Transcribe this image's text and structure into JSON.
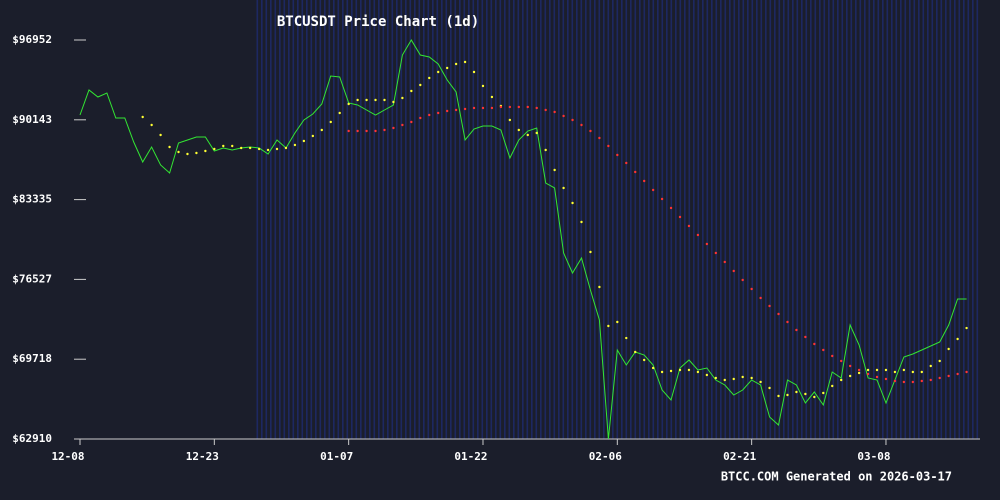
{
  "chart_data": {
    "type": "line",
    "title": "BTCUSDT Price Chart (1d)",
    "footer": "BTCC.COM Generated on 2026-03-17",
    "x": [
      0,
      1,
      2,
      3,
      4,
      5,
      6,
      7,
      8,
      9,
      10,
      11,
      12,
      13,
      14,
      15,
      16,
      17,
      18,
      19,
      20,
      21,
      22,
      23,
      24,
      25,
      26,
      27,
      28,
      29,
      30,
      31,
      32,
      33,
      34,
      35,
      36,
      37,
      38,
      39,
      40,
      41,
      42,
      43,
      44,
      45,
      46,
      47,
      48,
      49,
      50,
      51,
      52,
      53,
      54,
      55,
      56,
      57,
      58,
      59,
      60,
      61,
      62,
      63,
      64,
      65,
      66,
      67,
      68,
      69,
      70,
      71,
      72,
      73,
      74,
      75,
      76,
      77,
      78,
      79,
      80,
      81,
      82,
      83,
      84,
      85,
      86,
      87,
      88,
      89,
      90,
      91,
      92,
      93,
      94,
      95,
      96,
      97,
      98,
      99
    ],
    "xlim": [
      0,
      100.5
    ],
    "xticks": [
      {
        "value": 0,
        "label": "12-08"
      },
      {
        "value": 15,
        "label": "12-23"
      },
      {
        "value": 30,
        "label": "01-07"
      },
      {
        "value": 45,
        "label": "01-22"
      },
      {
        "value": 60,
        "label": "02-06"
      },
      {
        "value": 75,
        "label": "02-21"
      },
      {
        "value": 90,
        "label": "03-08"
      }
    ],
    "ylim": [
      62910,
      96952
    ],
    "yticks": [
      {
        "value": 96952,
        "label": "$96952"
      },
      {
        "value": 90143,
        "label": "$90143"
      },
      {
        "value": 83335,
        "label": "$83335"
      },
      {
        "value": 76527,
        "label": "$76527"
      },
      {
        "value": 69718,
        "label": "$69718"
      },
      {
        "value": 62910,
        "label": "$62910"
      }
    ],
    "series": [
      {
        "style": "line",
        "color": "#33e633",
        "values": [
          90553,
          92686,
          92089,
          92430,
          90297,
          90297,
          88250,
          86543,
          87823,
          86287,
          85605,
          88164,
          88420,
          88676,
          88676,
          87482,
          87738,
          87567,
          87738,
          87823,
          87738,
          87226,
          88420,
          87738,
          89018,
          90126,
          90639,
          91492,
          93880,
          93795,
          91577,
          91406,
          90980,
          90553,
          90980,
          91406,
          95672,
          96952,
          95672,
          95502,
          94905,
          93539,
          92515,
          88420,
          89359,
          89615,
          89615,
          89274,
          86884,
          88420,
          89188,
          89444,
          84751,
          84325,
          78779,
          77073,
          78352,
          75622,
          73063,
          62910,
          70503,
          69224,
          70333,
          70077,
          69224,
          67090,
          66237,
          68967,
          69650,
          68797,
          68967,
          67943,
          67517,
          66664,
          67090,
          67943,
          67517,
          64787,
          64104,
          67943,
          67517,
          65981,
          66920,
          65811,
          68626,
          68114,
          72636,
          70930,
          68114,
          67943,
          65981,
          67943,
          69906,
          70162,
          70503,
          70844,
          71186,
          72636,
          74854,
          74854
        ]
      },
      {
        "style": "dots",
        "color": "#ffff33",
        "values": [
          null,
          null,
          null,
          null,
          null,
          null,
          null,
          90383,
          89700,
          88847,
          87823,
          87396,
          87226,
          87311,
          87482,
          87652,
          87908,
          87908,
          87738,
          87738,
          87652,
          87567,
          87652,
          87738,
          87993,
          88335,
          88761,
          89274,
          89956,
          90724,
          91492,
          91833,
          91833,
          91833,
          91833,
          91662,
          92003,
          92601,
          93113,
          93710,
          94222,
          94563,
          94904,
          95075,
          94222,
          93027,
          92089,
          91321,
          90127,
          89274,
          88847,
          89017,
          87567,
          85861,
          84325,
          83045,
          81424,
          78864,
          75878,
          72550,
          72892,
          71526,
          70333,
          69650,
          68967,
          68626,
          68712,
          68797,
          68797,
          68626,
          68370,
          68114,
          67943,
          68029,
          68199,
          68114,
          67773,
          67261,
          66579,
          66664,
          66920,
          66749,
          66494,
          66835,
          67431,
          67943,
          68285,
          68541,
          68797,
          68797,
          68797,
          68626,
          68797,
          68626,
          68626,
          69139,
          69565,
          70588,
          71441,
          72379
        ]
      },
      {
        "style": "dots",
        "color": "#ff3333",
        "values": [
          null,
          null,
          null,
          null,
          null,
          null,
          null,
          null,
          null,
          null,
          null,
          null,
          null,
          null,
          null,
          null,
          null,
          null,
          null,
          null,
          null,
          null,
          null,
          null,
          null,
          null,
          null,
          null,
          null,
          null,
          89188,
          89188,
          89188,
          89188,
          89273,
          89444,
          89700,
          89956,
          90297,
          90553,
          90724,
          90894,
          90980,
          91065,
          91150,
          91150,
          91150,
          91236,
          91236,
          91236,
          91236,
          91150,
          90980,
          90809,
          90468,
          90126,
          89700,
          89188,
          88591,
          87908,
          87140,
          86458,
          85690,
          84922,
          84154,
          83386,
          82618,
          81850,
          81082,
          80315,
          79547,
          78779,
          78011,
          77243,
          76475,
          75707,
          74939,
          74257,
          73574,
          72892,
          72209,
          71612,
          71015,
          70503,
          69991,
          69564,
          69138,
          68796,
          68455,
          68199,
          68029,
          67858,
          67773,
          67773,
          67858,
          67943,
          68114,
          68284,
          68455,
          68626
        ]
      }
    ]
  }
}
